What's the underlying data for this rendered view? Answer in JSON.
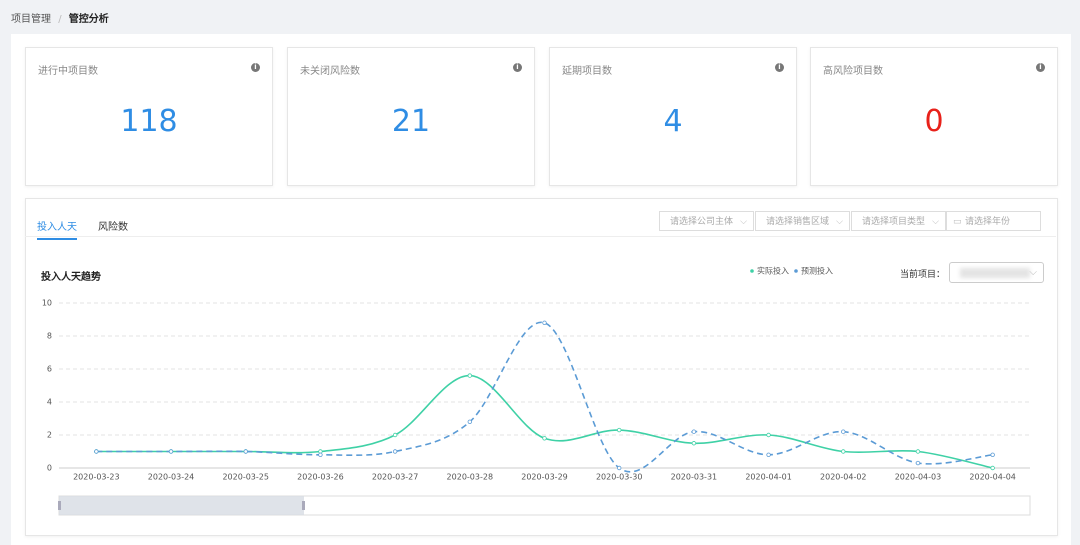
{
  "breadcrumb": [
    "项目管理",
    "管控分析"
  ],
  "breadcrumb_separator": "/",
  "cards": [
    {
      "label": "进行中项目数",
      "value": 118,
      "color": "#2f8de4"
    },
    {
      "label": "未关闭风险数",
      "value": 21,
      "color": "#2f8de4"
    },
    {
      "label": "延期项目数",
      "value": 4,
      "color": "#2f8de4"
    },
    {
      "label": "高风险项目数",
      "value": 0,
      "color": "#e8211a"
    }
  ],
  "tabs": [
    "投入人天",
    "风险数"
  ],
  "filters": [
    "请选择公司主体",
    "请选择销售区域",
    "请选择项目类型",
    "请选择年份"
  ],
  "current_project_label": "当前项目：",
  "chart_data": {
    "type": "line",
    "title": "投入人天趋势",
    "x": [
      "2020-03-23",
      "2020-03-24",
      "2020-03-25",
      "2020-03-26",
      "2020-03-27",
      "2020-03-28",
      "2020-03-29",
      "2020-03-30",
      "2020-03-31",
      "2020-04-01",
      "2020-04-02",
      "2020-04-03",
      "2020-04-04"
    ],
    "series": [
      {
        "name": "实际投入",
        "color": "#3fd1a6",
        "line_style": "solid",
        "values": [
          1,
          1,
          1,
          1,
          2,
          5.6,
          1.8,
          2.3,
          1.5,
          2,
          1,
          1,
          0
        ]
      },
      {
        "name": "预测投入",
        "color": "#5b9bd5",
        "line_style": "dashed",
        "values": [
          1,
          1,
          1,
          0.8,
          1,
          2.8,
          8.8,
          0,
          2.2,
          0.8,
          2.2,
          0.3,
          0.8
        ]
      }
    ],
    "ylim": [
      0,
      10
    ],
    "yticks": [
      0,
      2,
      4,
      6,
      8,
      10
    ],
    "grid": true
  }
}
